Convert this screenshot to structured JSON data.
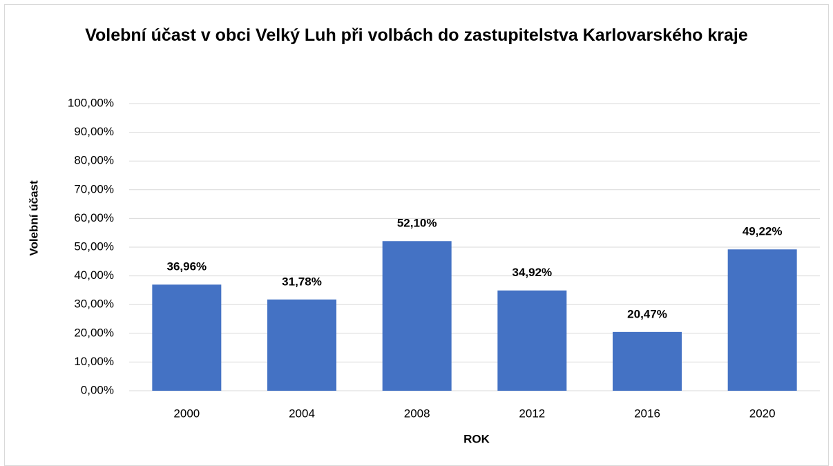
{
  "chart_data": {
    "type": "bar",
    "title": "Volební účast v obci Velký Luh při volbách do zastupitelstva Karlovarského kraje",
    "x_label": "ROK",
    "y_label": "Volební účast",
    "categories": [
      "2000",
      "2004",
      "2008",
      "2012",
      "2016",
      "2020"
    ],
    "values": [
      36.96,
      31.78,
      52.1,
      34.92,
      20.47,
      49.22
    ],
    "value_labels": [
      "36,96%",
      "31,78%",
      "52,10%",
      "34,92%",
      "20,47%",
      "49,22%"
    ],
    "color": "#4472c4",
    "ylim": [
      0,
      100
    ],
    "yticks": [
      {
        "value": 0,
        "label": "0,00%"
      },
      {
        "value": 10,
        "label": "10,00%"
      },
      {
        "value": 20,
        "label": "20,00%"
      },
      {
        "value": 30,
        "label": "30,00%"
      },
      {
        "value": 40,
        "label": "40,00%"
      },
      {
        "value": 50,
        "label": "50,00%"
      },
      {
        "value": 60,
        "label": "60,00%"
      },
      {
        "value": 70,
        "label": "70,00%"
      },
      {
        "value": 80,
        "label": "80,00%"
      },
      {
        "value": 90,
        "label": "90,00%"
      },
      {
        "value": 100,
        "label": "100,00%"
      }
    ],
    "grid": true
  }
}
